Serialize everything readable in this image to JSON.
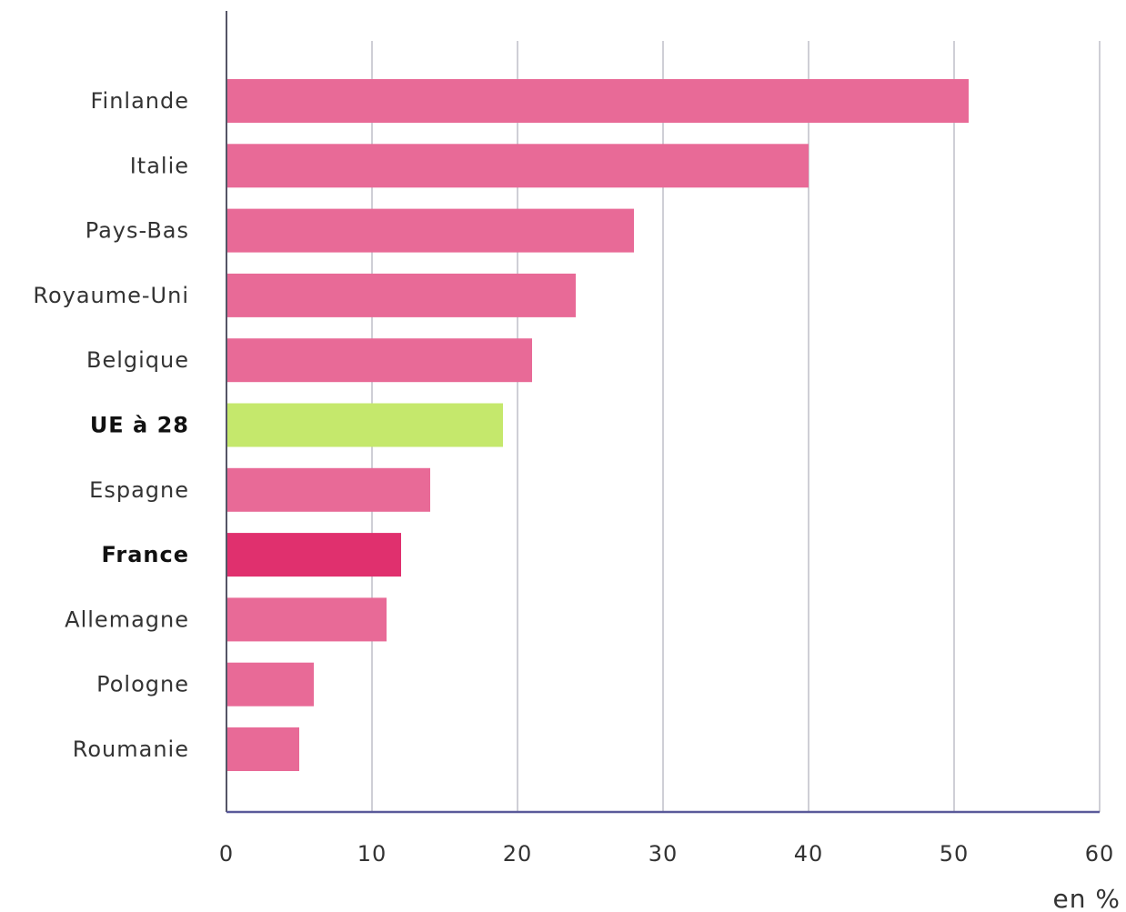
{
  "chart_data": {
    "type": "bar",
    "orientation": "horizontal",
    "categories": [
      "Finlande",
      "Italie",
      "Pays-Bas",
      "Royaume-Uni",
      "Belgique",
      "UE à 28",
      "Espagne",
      "France",
      "Allemagne",
      "Pologne",
      "Roumanie"
    ],
    "values": [
      51,
      40,
      28,
      24,
      21,
      19,
      14,
      12,
      11,
      6,
      5
    ],
    "highlight": {
      "UE à 28": {
        "color": "#c5e86c",
        "bold": true
      },
      "France": {
        "color": "#e0306e",
        "bold": true
      }
    },
    "default_color": "#e86a97",
    "xlim": [
      0,
      60
    ],
    "xticks": [
      0,
      10,
      20,
      30,
      40,
      50,
      60
    ],
    "xunit": "en %",
    "grid": true,
    "title": "",
    "xlabel": "",
    "ylabel": ""
  }
}
